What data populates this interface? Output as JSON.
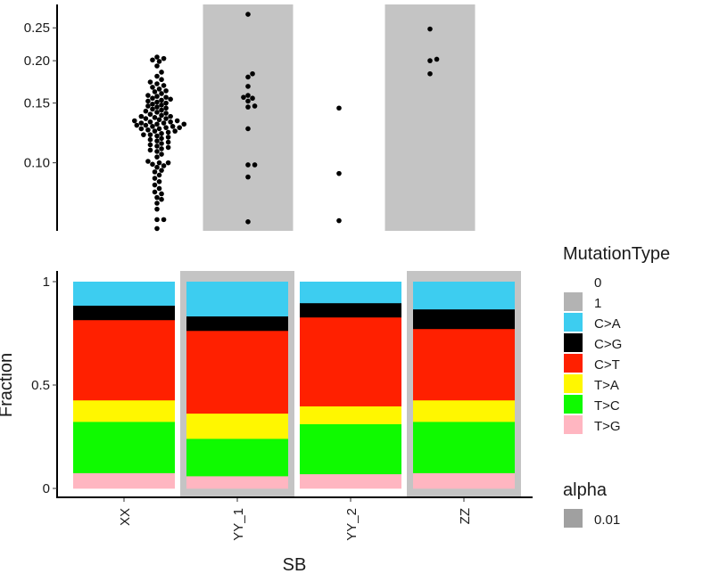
{
  "chart_data": [
    {
      "type": "scatter",
      "subtype": "beeswarm",
      "yscale": "log",
      "ylim": [
        0.063,
        0.293
      ],
      "yticks": [
        0.1,
        0.15,
        0.2,
        0.25
      ],
      "ytick_labels": [
        "0.10",
        "0.15",
        "0.20",
        "0.25"
      ],
      "shaded_groups": [
        1,
        3
      ],
      "groups": [
        {
          "name": "XX",
          "values": [
            0.064,
            0.068,
            0.068,
            0.073,
            0.076,
            0.078,
            0.079,
            0.081,
            0.082,
            0.084,
            0.086,
            0.088,
            0.09,
            0.092,
            0.094,
            0.095,
            0.097,
            0.098,
            0.099,
            0.1,
            0.1,
            0.101,
            0.104,
            0.106,
            0.108,
            0.109,
            0.11,
            0.111,
            0.112,
            0.113,
            0.114,
            0.115,
            0.116,
            0.117,
            0.118,
            0.119,
            0.12,
            0.121,
            0.121,
            0.122,
            0.123,
            0.124,
            0.124,
            0.125,
            0.126,
            0.126,
            0.127,
            0.127,
            0.128,
            0.128,
            0.129,
            0.129,
            0.13,
            0.13,
            0.131,
            0.131,
            0.132,
            0.132,
            0.133,
            0.133,
            0.134,
            0.135,
            0.135,
            0.136,
            0.137,
            0.137,
            0.138,
            0.139,
            0.14,
            0.141,
            0.142,
            0.143,
            0.144,
            0.145,
            0.146,
            0.147,
            0.148,
            0.149,
            0.15,
            0.151,
            0.152,
            0.153,
            0.154,
            0.155,
            0.156,
            0.157,
            0.158,
            0.16,
            0.162,
            0.163,
            0.165,
            0.167,
            0.169,
            0.171,
            0.173,
            0.176,
            0.18,
            0.185,
            0.193,
            0.199,
            0.201,
            0.203,
            0.205
          ]
        },
        {
          "name": "YY_1",
          "values": [
            0.274,
            0.183,
            0.179,
            0.168,
            0.158,
            0.156,
            0.155,
            0.152,
            0.147,
            0.146,
            0.126,
            0.0986,
            0.0986,
            0.0908,
            0.067
          ]
        },
        {
          "name": "YY_2",
          "values": [
            0.145,
            0.093,
            0.0675
          ]
        },
        {
          "name": "ZZ",
          "values": [
            0.248,
            0.202,
            0.2,
            0.183
          ]
        }
      ]
    },
    {
      "type": "bar",
      "stacked": true,
      "xlabel": "SB",
      "ylabel": "Fraction",
      "ylim": [
        0,
        1
      ],
      "yticks": [
        0,
        0.5,
        1
      ],
      "ytick_labels": [
        "0",
        "0.5",
        "1"
      ],
      "categories": [
        "XX",
        "YY_1",
        "YY_2",
        "ZZ"
      ],
      "background_flag": [
        0,
        1,
        0,
        1
      ],
      "series": [
        {
          "name": "T>G",
          "color": "#FFB6C1",
          "values": [
            0.075,
            0.06,
            0.07,
            0.075
          ]
        },
        {
          "name": "T>C",
          "color": "#0FFA00",
          "values": [
            0.248,
            0.181,
            0.242,
            0.248
          ]
        },
        {
          "name": "T>A",
          "color": "#FFF700",
          "values": [
            0.104,
            0.122,
            0.086,
            0.104
          ]
        },
        {
          "name": "C>T",
          "color": "#FF2000",
          "values": [
            0.388,
            0.4,
            0.43,
            0.345
          ]
        },
        {
          "name": "C>G",
          "color": "#000000",
          "values": [
            0.07,
            0.07,
            0.069,
            0.095
          ]
        },
        {
          "name": "C>A",
          "color": "#3DCDF0",
          "values": [
            0.115,
            0.167,
            0.103,
            0.133
          ]
        }
      ],
      "legend": {
        "title": "MutationType",
        "placement": "right",
        "entries": [
          {
            "label": "0",
            "color": "#FFFFFF"
          },
          {
            "label": "1",
            "color": "#B3B3B3"
          },
          {
            "label": "C>A",
            "color": "#3DCDF0"
          },
          {
            "label": "C>G",
            "color": "#000000"
          },
          {
            "label": "C>T",
            "color": "#FF2000"
          },
          {
            "label": "T>A",
            "color": "#FFF700"
          },
          {
            "label": "T>C",
            "color": "#0FFA00"
          },
          {
            "label": "T>G",
            "color": "#FFB6C1"
          }
        ]
      },
      "legend2": {
        "title": "alpha",
        "entries": [
          {
            "label": "0.01",
            "color": "#A0A0A0"
          }
        ]
      }
    }
  ],
  "colors": {
    "shade": "#C4C4C4",
    "axis": "#000000"
  }
}
